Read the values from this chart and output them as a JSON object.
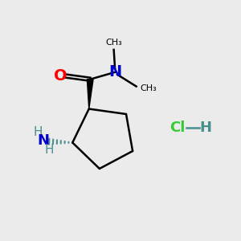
{
  "bg_color": "#ebebeb",
  "ring_color": "#000000",
  "bond_color": "#000000",
  "O_color": "#ff0000",
  "N_color": "#0000cc",
  "NH_color": "#4a8f8f",
  "HCl_Cl_color": "#33cc33",
  "HCl_H_color": "#4a8f8f",
  "figsize": [
    3.0,
    3.0
  ],
  "dpi": 100,
  "xlim": [
    0,
    10
  ],
  "ylim": [
    0,
    10
  ]
}
